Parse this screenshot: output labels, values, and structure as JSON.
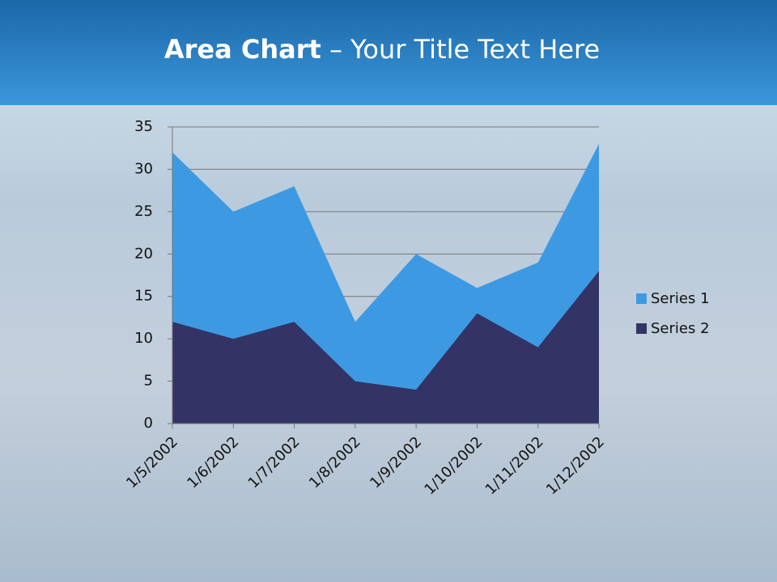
{
  "chart_data": {
    "type": "area",
    "title_bold": "Area Chart",
    "title": "– Your Title Text Here",
    "categories": [
      "1/5/2002",
      "1/6/2002",
      "1/7/2002",
      "1/8/2002",
      "1/9/2002",
      "1/10/2002",
      "1/11/2002",
      "1/12/2002"
    ],
    "series": [
      {
        "name": "Series 1",
        "color": "#3d9ae2",
        "values": [
          32,
          25,
          28,
          12,
          20,
          16,
          19,
          33
        ]
      },
      {
        "name": "Series 2",
        "color": "#333366",
        "values": [
          12,
          10,
          12,
          5,
          4,
          13,
          9,
          18
        ]
      }
    ],
    "ylim": [
      0,
      35
    ],
    "yticks": [
      0,
      5,
      10,
      15,
      20,
      25,
      30,
      35
    ],
    "grid": true,
    "legend": "right"
  }
}
